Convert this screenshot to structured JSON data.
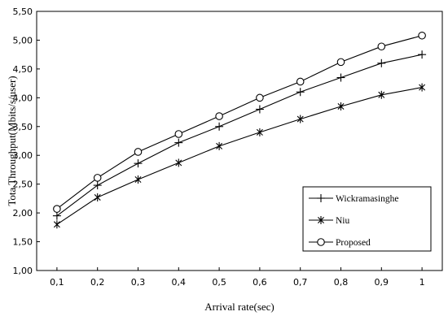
{
  "chart_data": {
    "type": "line",
    "xlabel": "Arrival rate(sec)",
    "ylabel": "Tota Throughput(Mbits/s/user)",
    "x": [
      "0,1",
      "0,2",
      "0,3",
      "0,4",
      "0,5",
      "0,6",
      "0,7",
      "0,8",
      "0,9",
      "1"
    ],
    "ylim": [
      1.0,
      5.5
    ],
    "yticks": [
      "1,00",
      "1,50",
      "2,00",
      "2,50",
      "3,00",
      "3,50",
      "4,00",
      "4,50",
      "5,00",
      "5,50"
    ],
    "grid": false,
    "legend_position": "bottom-right",
    "series": [
      {
        "name": "Wickramasinghe",
        "marker": "plus",
        "values": [
          1.95,
          2.48,
          2.86,
          3.22,
          3.5,
          3.8,
          4.1,
          4.35,
          4.6,
          4.75
        ]
      },
      {
        "name": "Niu",
        "marker": "star",
        "values": [
          1.8,
          2.27,
          2.58,
          2.87,
          3.16,
          3.4,
          3.63,
          3.85,
          4.05,
          4.18
        ]
      },
      {
        "name": "Proposed",
        "marker": "circle",
        "values": [
          2.07,
          2.61,
          3.06,
          3.37,
          3.68,
          4.0,
          4.28,
          4.62,
          4.89,
          5.08
        ]
      }
    ]
  }
}
